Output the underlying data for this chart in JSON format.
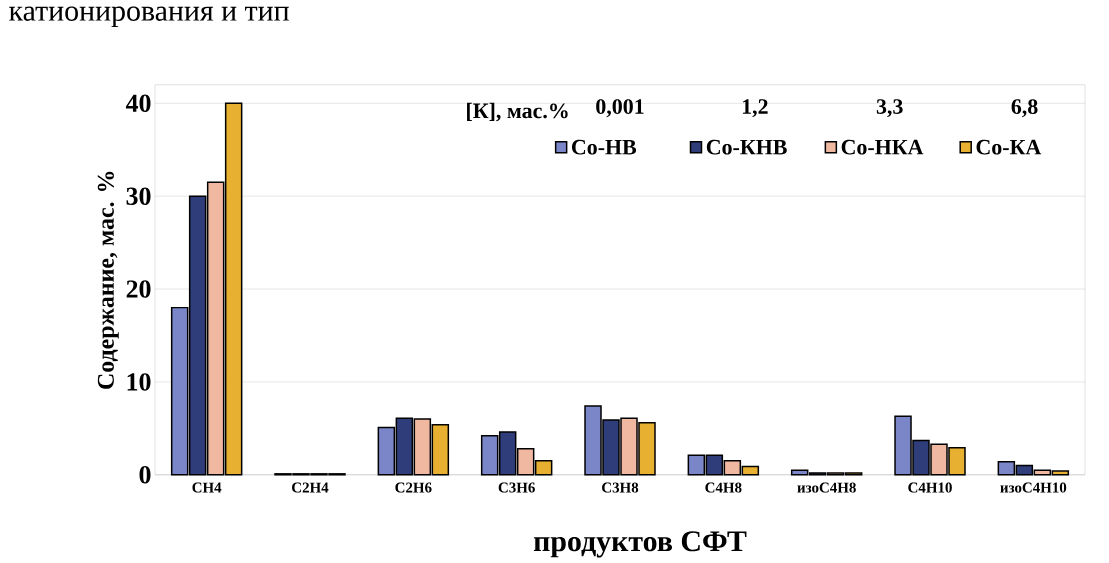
{
  "chart_data": {
    "type": "bar",
    "ylabel": "Содержание, мас. %",
    "legend_title": "[К], мас.%",
    "categories": [
      "CH4",
      "C2H4",
      "C2H6",
      "C3H6",
      "C3H8",
      "C4H8",
      "изоC4H8",
      "C4H10",
      "изоC4H10"
    ],
    "series": [
      {
        "name": "Co-НВ",
        "color": "#7b86c9",
        "values": [
          18,
          0.1,
          5.1,
          4.2,
          7.4,
          2.1,
          0.5,
          6.3,
          1.4
        ]
      },
      {
        "name": "Co-КНВ",
        "color": "#2f3d7a",
        "values": [
          30,
          0.1,
          6.1,
          4.6,
          5.9,
          2.1,
          0.2,
          3.7,
          1.0
        ]
      },
      {
        "name": "Co-НКА",
        "color": "#f0b8a0",
        "values": [
          31.5,
          0.1,
          6.0,
          2.8,
          6.1,
          1.5,
          0.2,
          3.3,
          0.5
        ]
      },
      {
        "name": "Co-КА",
        "color": "#e8b030",
        "values": [
          40,
          0.1,
          5.4,
          1.5,
          5.6,
          0.9,
          0.2,
          2.9,
          0.4
        ]
      }
    ],
    "ylim": [
      0,
      42
    ],
    "yticks": [
      0,
      10,
      20,
      30,
      40
    ],
    "grid": "y",
    "legend": "top",
    "annotations": [
      "0,001",
      "1,2",
      "3,3",
      "6,8",
      "катионирования и тип",
      "продуктов СФТ"
    ]
  }
}
